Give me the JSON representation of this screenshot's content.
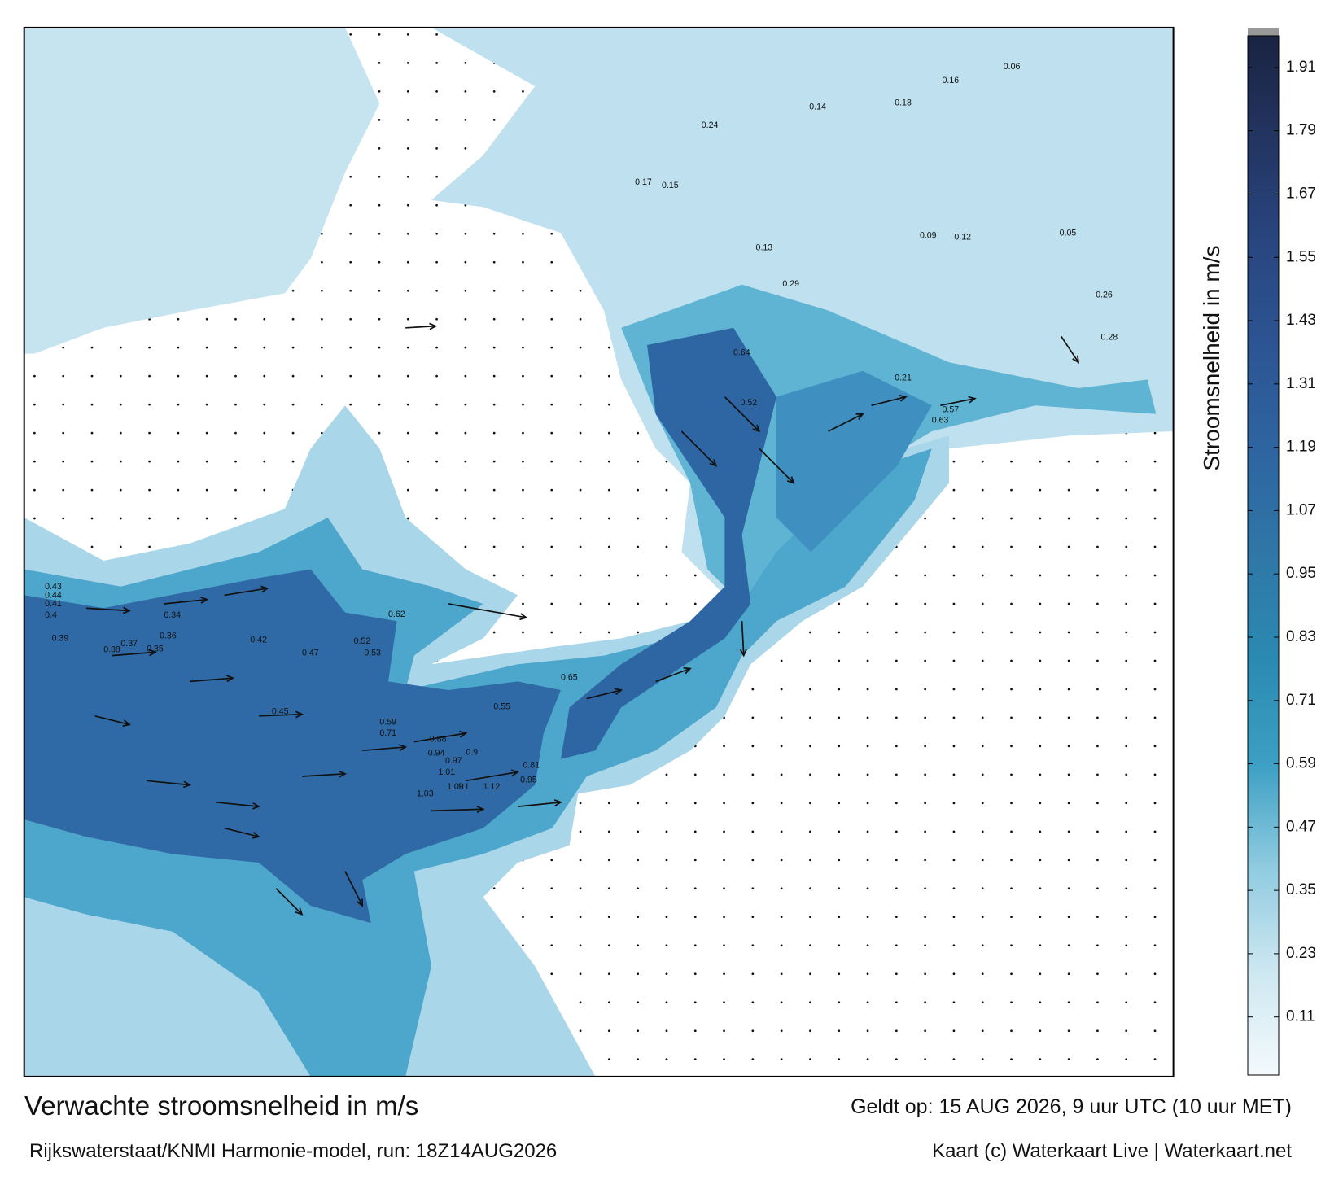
{
  "map": {
    "title": "Verwachte stroomsnelheid in m/s",
    "valid_time": "Geldt op: 15 AUG 2026, 9 uur UTC (10 uur MET)",
    "model_run": "Rijkswaterstaat/KNMI Harmonie-model, run: 18Z14AUG2026",
    "credit": "Kaart (c) Waterkaart Live | Waterkaart.net",
    "colorbar": {
      "label": "Stroomsnelheid in m/s",
      "clim": [
        0,
        1.97
      ],
      "ticks": [
        0.11,
        0.23,
        0.35,
        0.47,
        0.59,
        0.71,
        0.83,
        0.95,
        1.07,
        1.19,
        1.31,
        1.43,
        1.55,
        1.67,
        1.79,
        1.91
      ],
      "colors": [
        "#f4fafd",
        "#cde7f1",
        "#8fcbe0",
        "#3c9fc3",
        "#2b8ab2",
        "#2f77a7",
        "#2e65a0",
        "#2c5593",
        "#294680",
        "#233562",
        "#1a2342"
      ]
    },
    "labels": [
      0.43,
      0.44,
      0.41,
      0.4,
      0.39,
      0.38,
      0.37,
      0.36,
      0.35,
      0.34,
      0.42,
      0.45,
      0.47,
      0.52,
      0.53,
      0.62,
      0.59,
      0.71,
      0.88,
      0.9,
      0.94,
      0.97,
      1.01,
      1.03,
      1.09,
      1.1,
      1.12,
      0.95,
      0.81,
      0.65,
      0.55,
      0.57,
      0.63,
      0.64,
      0.52,
      0.29,
      0.24,
      0.17,
      0.15,
      0.13,
      0.12,
      0.09,
      0.06,
      0.05,
      0.21,
      0.18,
      0.16,
      0.14,
      0.26,
      0.28
    ]
  }
}
